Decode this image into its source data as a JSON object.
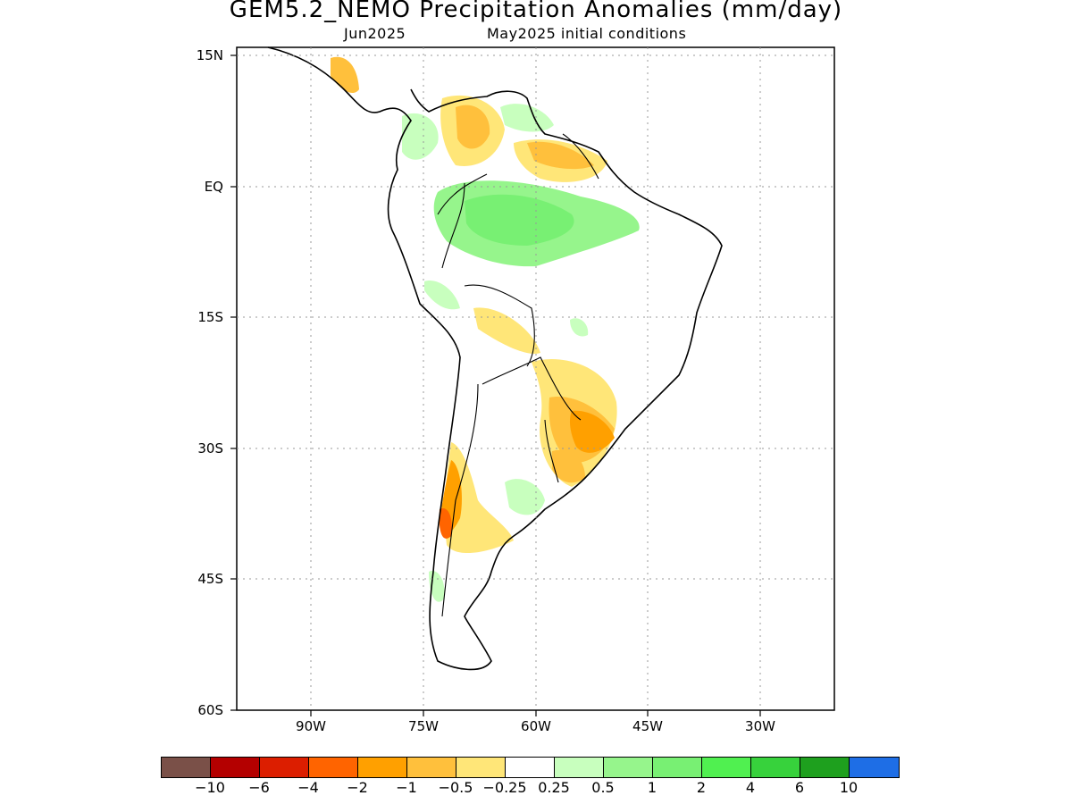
{
  "title": "GEM5.2_NEMO Precipitation Anomalies (mm/day)",
  "subtitle_left": "Jun2025",
  "subtitle_right": "May2025 initial conditions",
  "lat_ticks": [
    "15N",
    "EQ",
    "15S",
    "30S",
    "45S",
    "60S"
  ],
  "lon_ticks": [
    "90W",
    "75W",
    "60W",
    "45W",
    "30W"
  ],
  "colorbar": {
    "colors": [
      "#7a5048",
      "#b40000",
      "#dc1e00",
      "#ff6400",
      "#ffa000",
      "#ffc03c",
      "#ffe678",
      "#ffffff",
      "#c8ffbe",
      "#96f58c",
      "#78f073",
      "#50f050",
      "#37d23c",
      "#1ea01e",
      "#1e6ee6"
    ],
    "labels": [
      "−10",
      "−6",
      "−4",
      "−2",
      "−1",
      "−0.5",
      "−0.25",
      "0.25",
      "0.5",
      "1",
      "2",
      "4",
      "6",
      "10"
    ]
  }
}
